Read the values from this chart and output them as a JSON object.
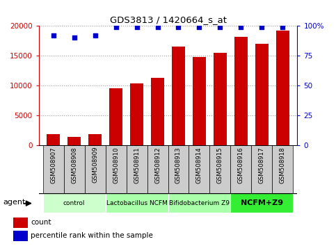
{
  "title": "GDS3813 / 1420664_s_at",
  "samples": [
    "GSM508907",
    "GSM508908",
    "GSM508909",
    "GSM508910",
    "GSM508911",
    "GSM508912",
    "GSM508913",
    "GSM508914",
    "GSM508915",
    "GSM508916",
    "GSM508917",
    "GSM508918"
  ],
  "counts": [
    1800,
    1400,
    1800,
    9500,
    10300,
    11300,
    16500,
    14800,
    15500,
    18100,
    17000,
    19200
  ],
  "percentile_ranks": [
    92,
    90,
    92,
    99,
    99,
    99,
    99,
    99,
    99,
    99,
    99,
    99
  ],
  "bar_color": "#cc0000",
  "dot_color": "#0000cc",
  "ylim_left": [
    0,
    20000
  ],
  "ylim_right": [
    0,
    100
  ],
  "yticks_left": [
    0,
    5000,
    10000,
    15000,
    20000
  ],
  "yticks_right": [
    0,
    25,
    50,
    75,
    100
  ],
  "groups": [
    {
      "label": "control",
      "start": 0,
      "end": 3,
      "color": "#ccffcc"
    },
    {
      "label": "Lactobacillus NCFM",
      "start": 3,
      "end": 6,
      "color": "#aaffaa"
    },
    {
      "label": "Bifidobacterium Z9",
      "start": 6,
      "end": 9,
      "color": "#aaffaa"
    },
    {
      "label": "NCFM+Z9",
      "start": 9,
      "end": 12,
      "color": "#33ee33"
    }
  ],
  "agent_label": "agent",
  "legend_count_label": "count",
  "legend_pct_label": "percentile rank within the sample",
  "grid_color": "#999999",
  "background_color": "#ffffff",
  "tick_area_color": "#cccccc",
  "right_axis_label": "%"
}
